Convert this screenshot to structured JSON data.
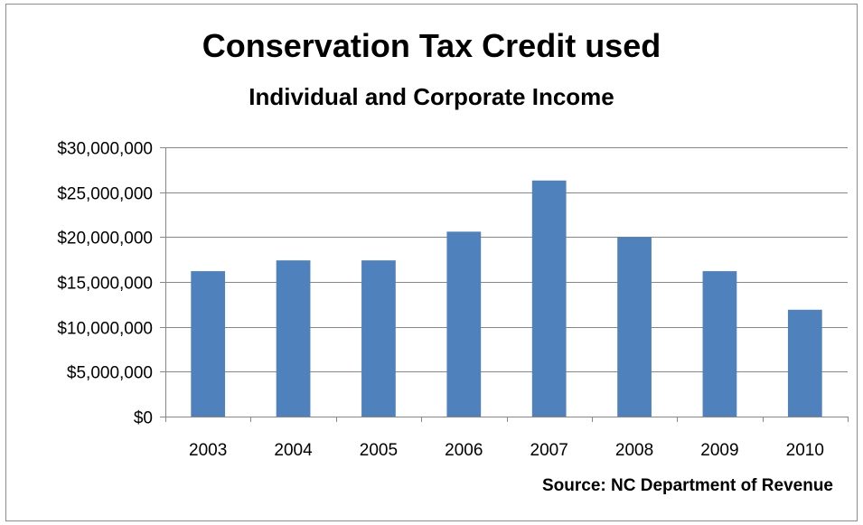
{
  "chart_data": {
    "type": "bar",
    "title": "Conservation Tax Credit used",
    "subtitle": "Individual and Corporate Income",
    "source": "Source: NC Department of Revenue",
    "categories": [
      "2003",
      "2004",
      "2005",
      "2006",
      "2007",
      "2008",
      "2009",
      "2010"
    ],
    "values": [
      16200000,
      17400000,
      17400000,
      20600000,
      26300000,
      20000000,
      16200000,
      11900000
    ],
    "ylim": [
      0,
      30000000
    ],
    "ytick_values": [
      0,
      5000000,
      10000000,
      15000000,
      20000000,
      25000000,
      30000000
    ],
    "ytick_labels": [
      "$0",
      "$5,000,000",
      "$10,000,000",
      "$15,000,000",
      "$20,000,000",
      "$25,000,000",
      "$30,000,000"
    ],
    "xlabel": "",
    "ylabel": "",
    "grid": true,
    "legend": false,
    "bar_color": "#4f81bd",
    "grid_color": "#878787"
  }
}
